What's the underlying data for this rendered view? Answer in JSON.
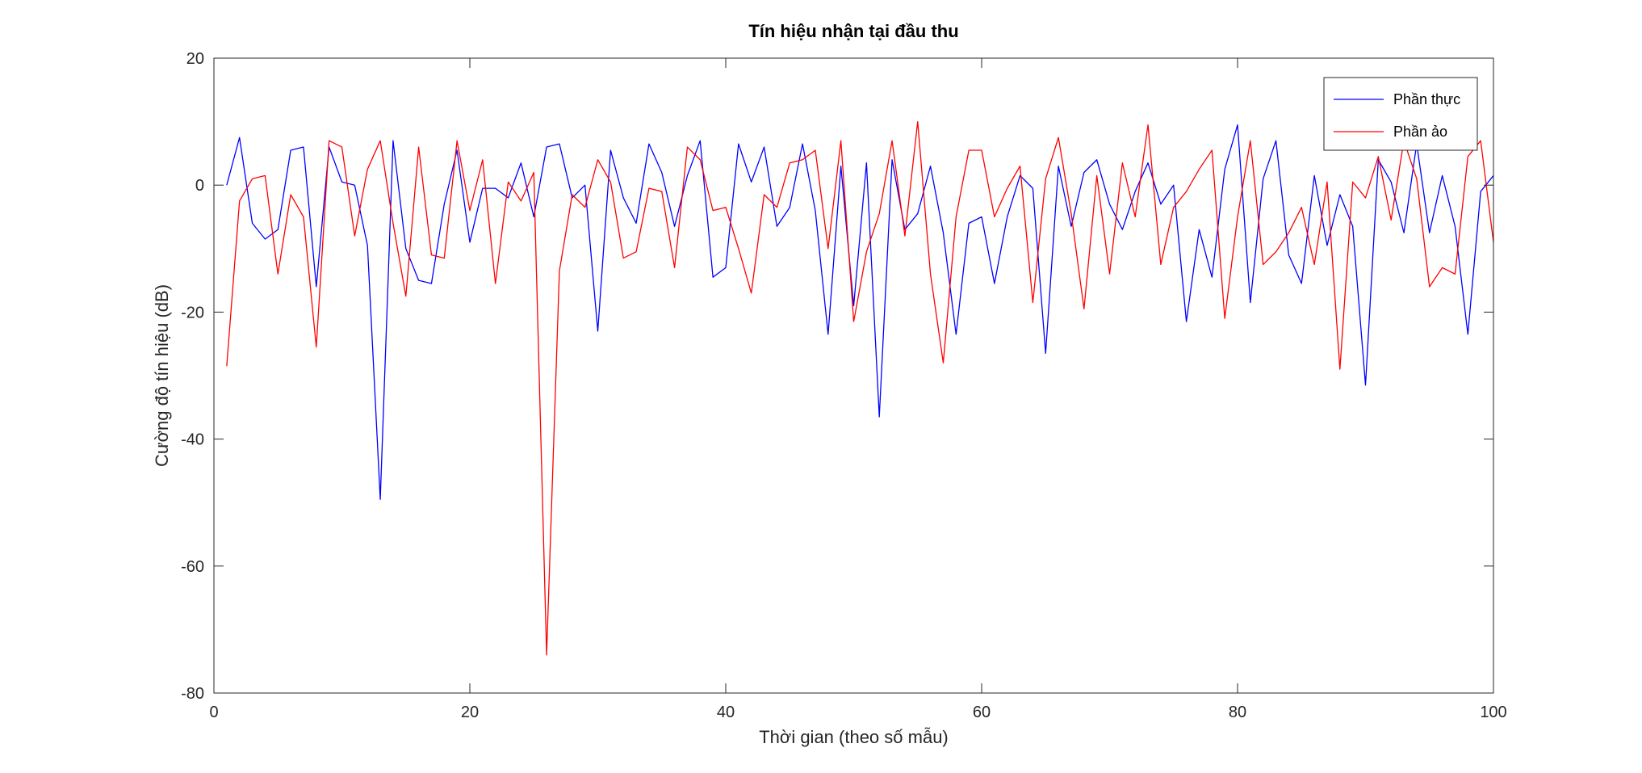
{
  "chart_data": {
    "type": "line",
    "title": "Tín hiệu nhận tại đầu thu",
    "xlabel": "Thời gian (theo số mẫu)",
    "ylabel": "Cường độ tín hiệu (dB)",
    "xlim": [
      0,
      100
    ],
    "ylim": [
      -80,
      20
    ],
    "xticks": [
      0,
      20,
      40,
      60,
      80,
      100
    ],
    "yticks": [
      20,
      0,
      -20,
      -40,
      -60,
      -80
    ],
    "grid": false,
    "legend_position": "top-right",
    "x": [
      1,
      2,
      3,
      4,
      5,
      6,
      7,
      8,
      9,
      10,
      11,
      12,
      13,
      14,
      15,
      16,
      17,
      18,
      19,
      20,
      21,
      22,
      23,
      24,
      25,
      26,
      27,
      28,
      29,
      30,
      31,
      32,
      33,
      34,
      35,
      36,
      37,
      38,
      39,
      40,
      41,
      42,
      43,
      44,
      45,
      46,
      47,
      48,
      49,
      50,
      51,
      52,
      53,
      54,
      55,
      56,
      57,
      58,
      59,
      60,
      61,
      62,
      63,
      64,
      65,
      66,
      67,
      68,
      69,
      70,
      71,
      72,
      73,
      74,
      75,
      76,
      77,
      78,
      79,
      80,
      81,
      82,
      83,
      84,
      85,
      86,
      87,
      88,
      89,
      90,
      91,
      92,
      93,
      94,
      95,
      96,
      97,
      98,
      99,
      100
    ],
    "series": [
      {
        "name": "Phần thực",
        "color": "#0000ff",
        "values": [
          0,
          7.5,
          -6,
          -8.5,
          -7,
          5.5,
          6,
          -16,
          6,
          0.5,
          0,
          -9.5,
          -49.5,
          7,
          -10,
          -15,
          -15.5,
          -3,
          5.5,
          -9,
          -0.5,
          -0.5,
          -2,
          3.5,
          -5,
          6,
          6.5,
          -2,
          0,
          -23,
          5.5,
          -2,
          -6,
          6.5,
          2,
          -6.5,
          1.5,
          7,
          -14.5,
          -13,
          6.5,
          0.5,
          6,
          -6.5,
          -3.5,
          6.5,
          -4,
          -23.5,
          3,
          -19,
          3.5,
          -36.5,
          4,
          -7,
          -4.5,
          3,
          -7.5,
          -23.5,
          -6,
          -5,
          -15.5,
          -5,
          1.5,
          -0.5,
          -26.5,
          3,
          -6.5,
          2,
          4,
          -3,
          -7,
          -1,
          3.5,
          -3,
          0,
          -21.5,
          -7,
          -14.5,
          2.5,
          9.5,
          -18.5,
          1,
          7,
          -11,
          -15.5,
          1.5,
          -9.5,
          -1.5,
          -6.5,
          -31.5,
          4,
          0.5,
          -7.5,
          6.5,
          -7.5,
          1.5,
          -6.5,
          -23.5,
          -1,
          1.5
        ]
      },
      {
        "name": "Phần ảo",
        "color": "#ff0000",
        "values": [
          -28.5,
          -2.5,
          1,
          1.5,
          -14,
          -1.5,
          -5,
          -25.5,
          7,
          6,
          -8,
          2.5,
          7,
          -6,
          -17.5,
          6,
          -11,
          -11.5,
          7,
          -4,
          4,
          -15.5,
          0.5,
          -2.5,
          2,
          -74,
          -13.5,
          -1.5,
          -3.5,
          4,
          0.5,
          -11.5,
          -10.5,
          -0.5,
          -1,
          -13,
          6,
          4,
          -4,
          -3.5,
          -10,
          -17,
          -1.5,
          -3.5,
          3.5,
          4,
          5.5,
          -10,
          7,
          -21.5,
          -10.5,
          -4.5,
          7,
          -8,
          10,
          -14,
          -28,
          -5,
          5.5,
          5.5,
          -5,
          -0.5,
          3,
          -18.5,
          1,
          7.5,
          -4.5,
          -19.5,
          1.5,
          -14,
          3.5,
          -5,
          9.5,
          -12.5,
          -3.5,
          -1,
          2.5,
          5.5,
          -21,
          -5,
          7,
          -12.5,
          -10.5,
          -7.5,
          -3.5,
          -12.5,
          0.5,
          -29,
          0.5,
          -2,
          4.5,
          -5.5,
          7,
          1,
          -16,
          -13,
          -14,
          4.5,
          7,
          -9
        ]
      }
    ]
  }
}
